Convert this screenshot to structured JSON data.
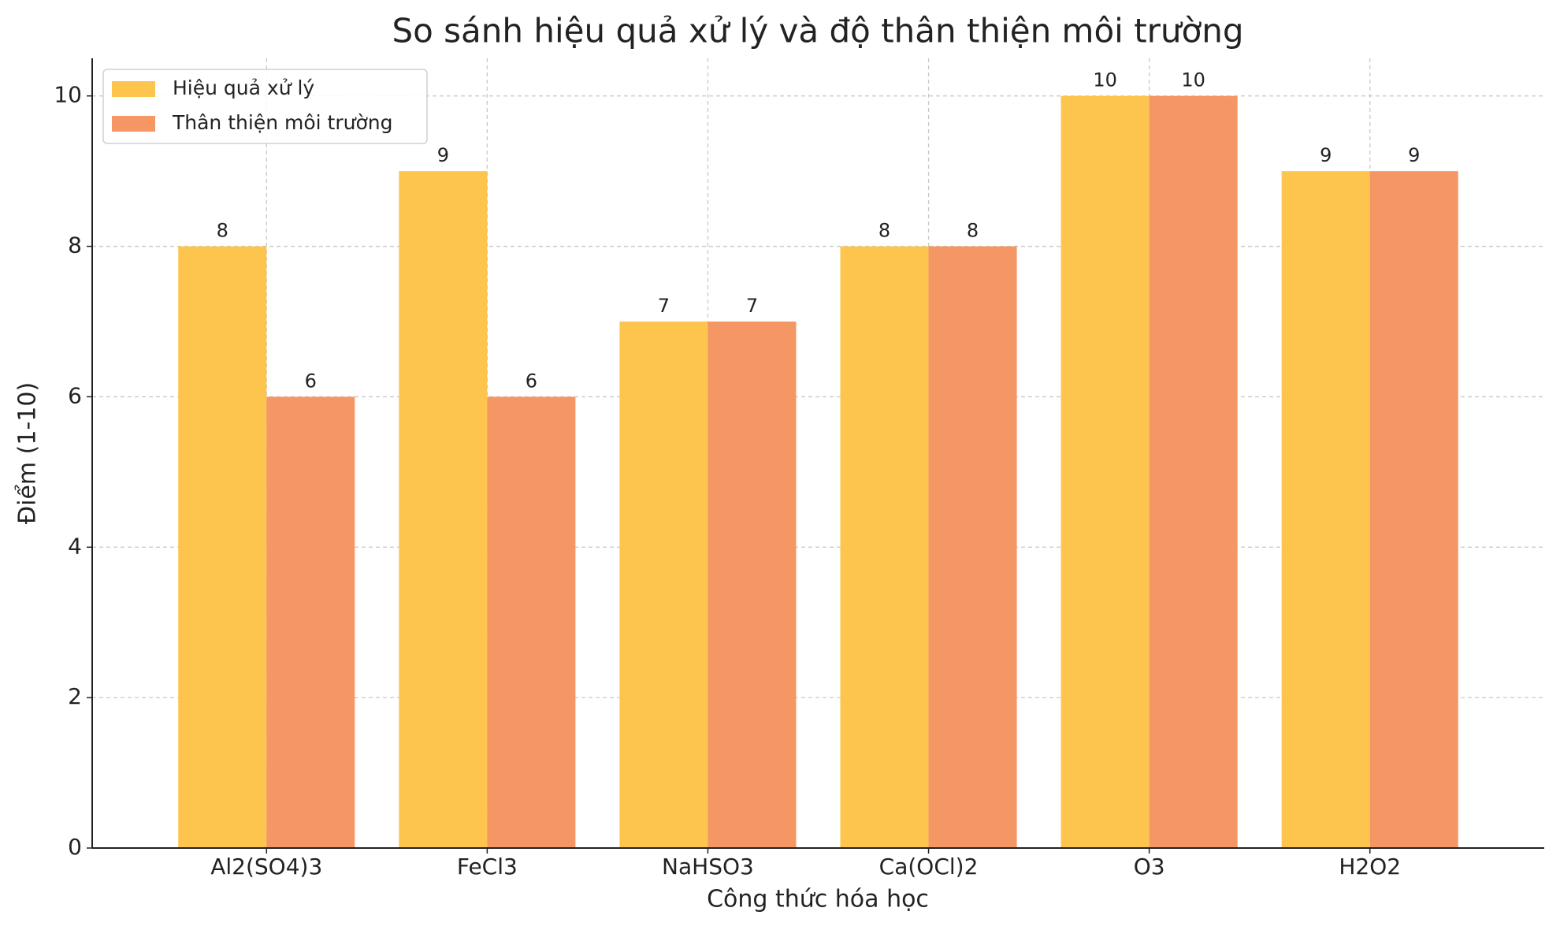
{
  "chart_data": {
    "type": "bar",
    "title": "So sánh hiệu quả xử lý và độ thân thiện môi trường",
    "x_label": "Công thức hóa học",
    "y_label": "Điểm (1-10)",
    "categories": [
      "Al2(SO4)3",
      "FeCl3",
      "NaHSO3",
      "Ca(OCl)2",
      "O3",
      "H2O2"
    ],
    "series": [
      {
        "name": "Hiệu quả xử lý",
        "color": "#fdc54e",
        "values": [
          8,
          9,
          7,
          8,
          10,
          9
        ]
      },
      {
        "name": "Thân thiện môi trường",
        "color": "#f59665",
        "values": [
          6,
          6,
          7,
          8,
          10,
          9
        ]
      }
    ],
    "ylim": [
      0,
      10.5
    ],
    "yticks": [
      0,
      2,
      4,
      6,
      8,
      10
    ],
    "grid": true,
    "legend": "upper left"
  }
}
